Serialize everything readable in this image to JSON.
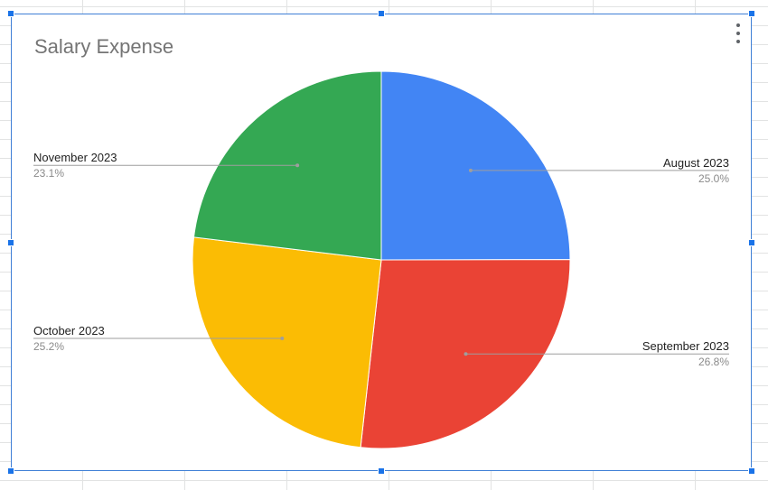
{
  "chart_data": {
    "type": "pie",
    "title": "Salary Expense",
    "slices": [
      {
        "label": "August 2023",
        "percent": "25.0%",
        "value": 25.0,
        "color": "#4285f4"
      },
      {
        "label": "September 2023",
        "percent": "26.8%",
        "value": 26.8,
        "color": "#ea4335"
      },
      {
        "label": "October 2023",
        "percent": "25.2%",
        "value": 25.2,
        "color": "#fbbc04"
      },
      {
        "label": "November 2023",
        "percent": "23.1%",
        "value": 23.1,
        "color": "#34a853"
      }
    ],
    "start_angle_deg": 0,
    "direction": "clockwise",
    "legend": "labeled-slices"
  },
  "chart_menu": {
    "icon": "more-vert-icon"
  }
}
